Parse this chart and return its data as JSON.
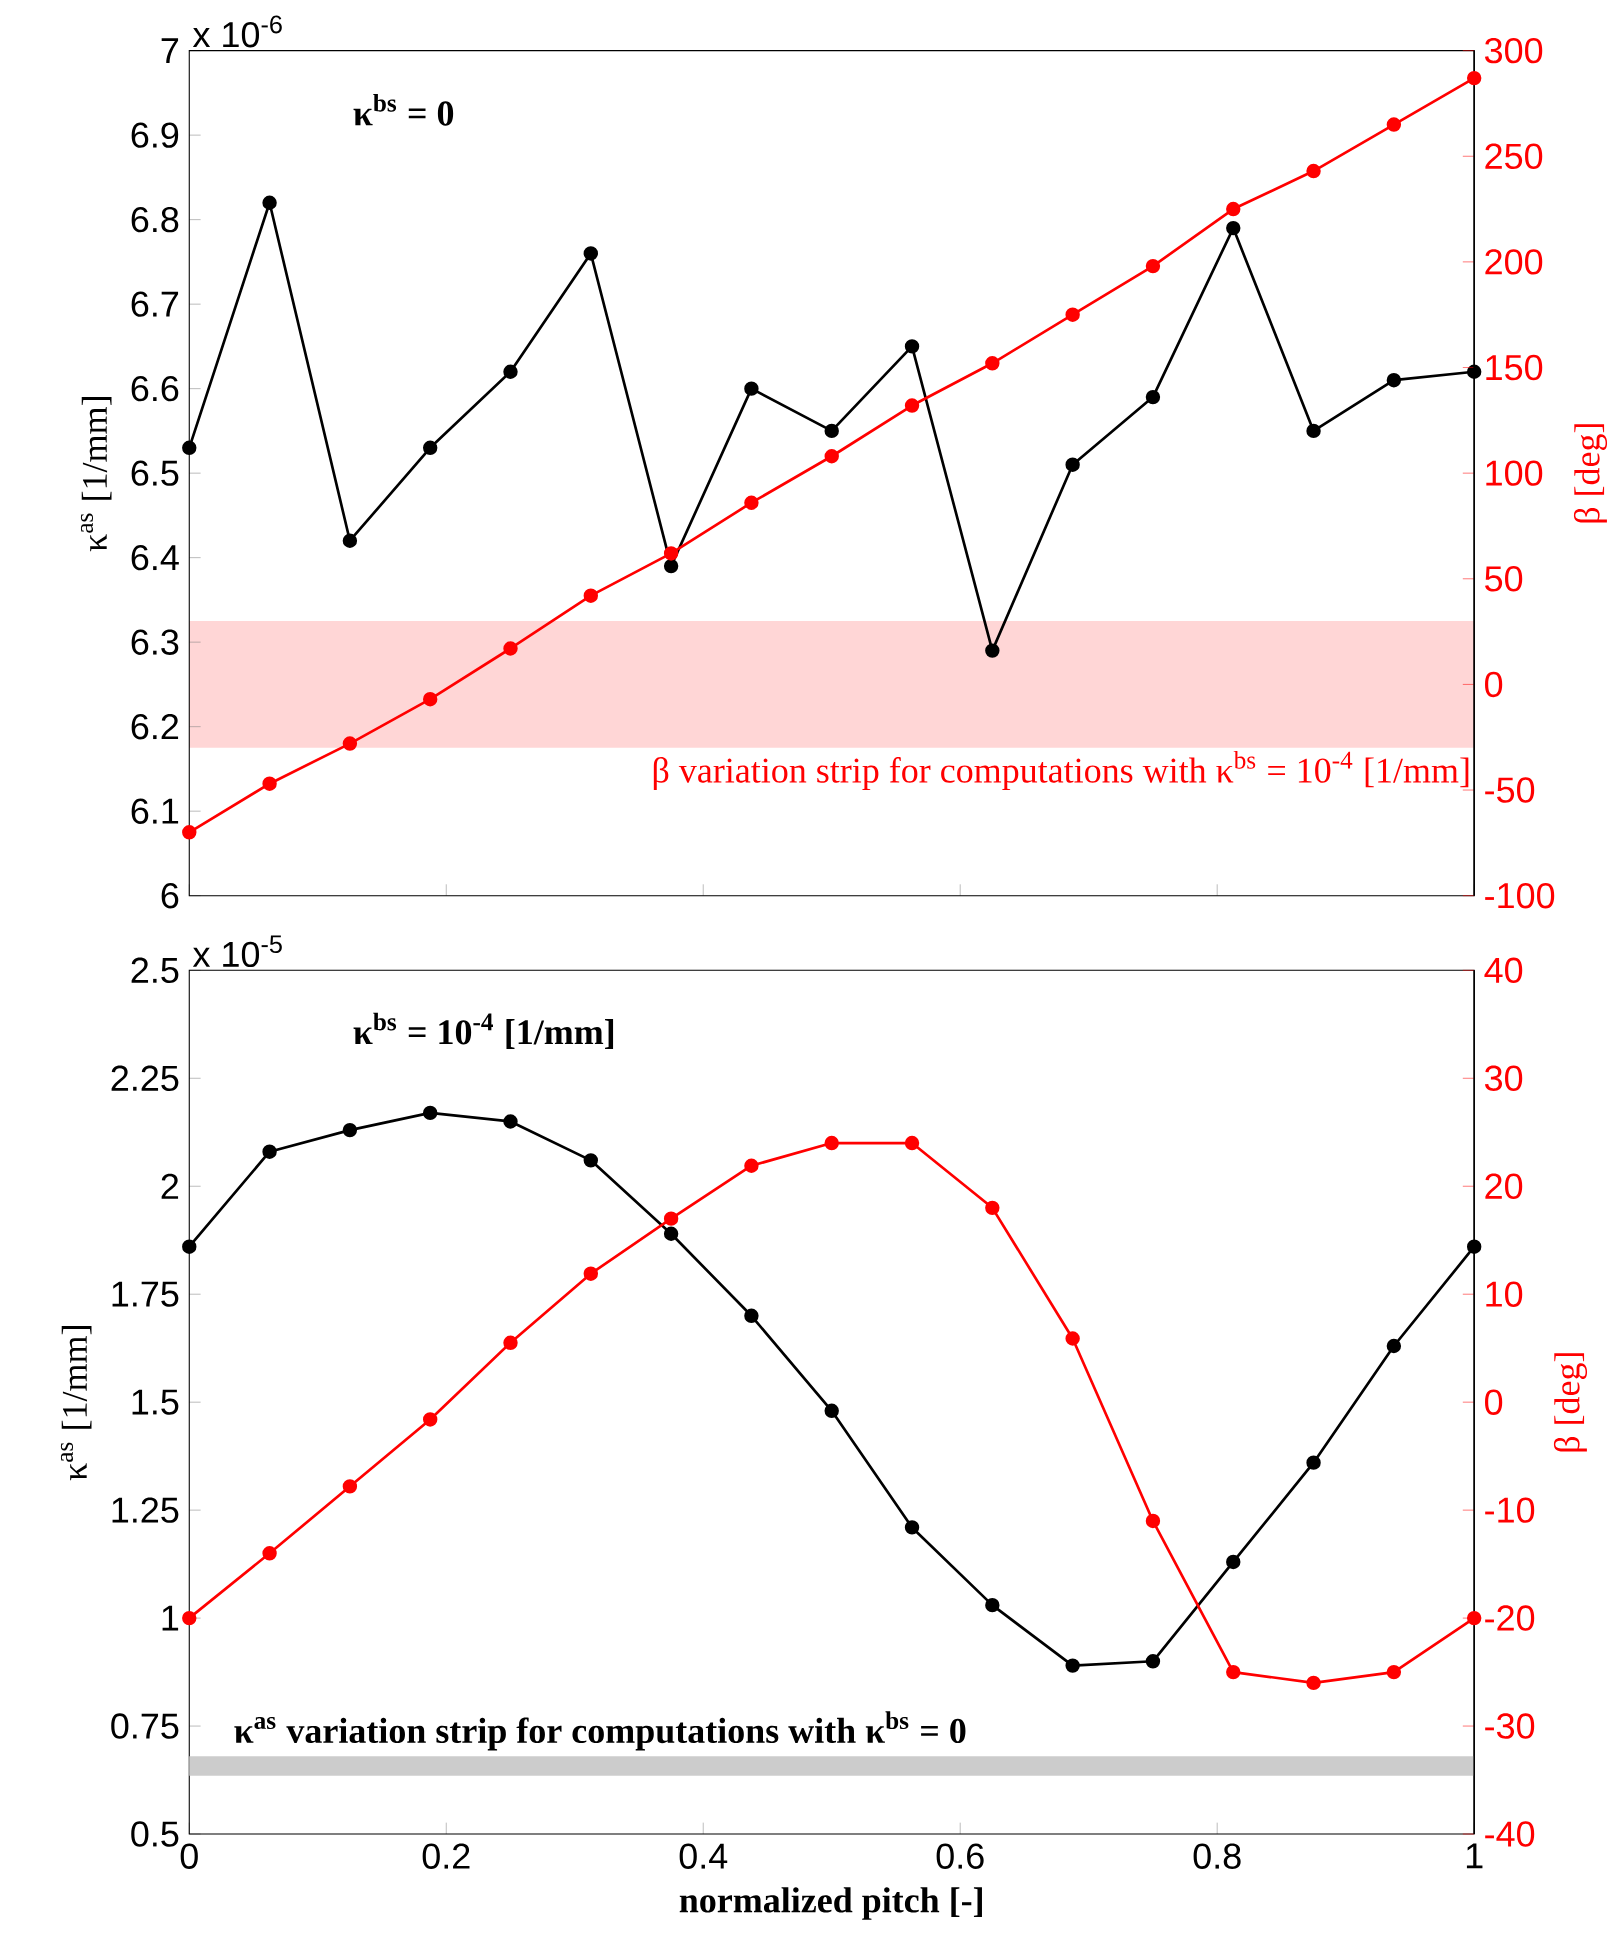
{
  "chart_data": [
    {
      "type": "line",
      "marker": "circle",
      "line_style": "solid",
      "tick_labels": "y",
      "x": [
        0,
        0.0625,
        0.125,
        0.1875,
        0.25,
        0.3125,
        0.375,
        0.4375,
        0.5,
        0.5625,
        0.625,
        0.6875,
        0.75,
        0.8125,
        0.875,
        0.9375,
        1
      ],
      "xlim": [
        0,
        1
      ],
      "xticks": [
        0,
        0.2,
        0.4,
        0.6,
        0.8,
        1
      ],
      "ylim": [
        6,
        7
      ],
      "yticks": [
        6,
        6.1,
        6.2,
        6.3,
        6.4,
        6.5,
        6.6,
        6.7,
        6.8,
        6.9,
        7
      ],
      "y2lim": [
        -100,
        300
      ],
      "y2ticks": [
        -100,
        -50,
        0,
        50,
        100,
        150,
        200,
        250,
        300
      ],
      "ylabel": "κ$^{as}$ [1/mm]",
      "y2label": "β [deg]",
      "annotations": [
        "x 10$^{-6}$",
        "κ$^{bs}$ = 0"
      ],
      "bands": [
        {
          "axis": "y2",
          "from": -30,
          "to": 30,
          "color": "#ffd6d6",
          "label": "β variation strip for computations with κ$^{bs}$ = 10$^{-4}$ [1/mm]"
        }
      ],
      "series": [
        {
          "color": "#000000",
          "values": [
            6.53,
            6.82,
            6.42,
            6.53,
            6.62,
            6.76,
            6.39,
            6.6,
            6.55,
            6.65,
            6.29,
            6.51,
            6.59,
            6.79,
            6.55,
            6.61,
            6.62
          ]
        },
        {
          "color": "#ff0000",
          "axis": "y2",
          "values": [
            -70,
            -47,
            -28,
            -7,
            17,
            42,
            62,
            86,
            108,
            132,
            152,
            175,
            198,
            225,
            243,
            265,
            287
          ]
        }
      ]
    },
    {
      "type": "line",
      "marker": "circle",
      "line_style": "solid",
      "x": [
        0,
        0.0625,
        0.125,
        0.1875,
        0.25,
        0.3125,
        0.375,
        0.4375,
        0.5,
        0.5625,
        0.625,
        0.6875,
        0.75,
        0.8125,
        0.875,
        0.9375,
        1
      ],
      "xlim": [
        0,
        1
      ],
      "xticks": [
        0,
        0.2,
        0.4,
        0.6,
        0.8,
        1
      ],
      "ylim": [
        0.5,
        2.5
      ],
      "yticks": [
        0.5,
        0.75,
        1,
        1.25,
        1.5,
        1.75,
        2,
        2.25,
        2.5
      ],
      "y2lim": [
        -40,
        40
      ],
      "y2ticks": [
        -40,
        -30,
        -20,
        -10,
        0,
        10,
        20,
        30,
        40
      ],
      "xlabel": "normalized pitch [-]",
      "ylabel": "κ$^{as}$ [1/mm]",
      "y2label": "β [deg]",
      "annotations": [
        "x 10$^{-5}$",
        "κ$^{bs}$ = 10$^{-4}$ [1/mm]"
      ],
      "bands": [
        {
          "axis": "y",
          "from": 0.635,
          "to": 0.68,
          "color": "#cccccc",
          "label": "κ$^{as}$ variation strip for computations with κ$^{bs}$ = 0"
        }
      ],
      "series": [
        {
          "color": "#000000",
          "values": [
            1.86,
            2.08,
            2.13,
            2.17,
            2.15,
            2.06,
            1.89,
            1.7,
            1.48,
            1.21,
            1.03,
            0.89,
            0.9,
            1.13,
            1.36,
            1.63,
            1.86
          ]
        },
        {
          "color": "#ff0000",
          "axis": "y2",
          "values": [
            -20,
            -14,
            -7.8,
            -1.6,
            5.5,
            11.9,
            17,
            21.9,
            24,
            24,
            18,
            5.9,
            -11,
            -25,
            -26,
            -25,
            -20
          ]
        }
      ]
    }
  ]
}
